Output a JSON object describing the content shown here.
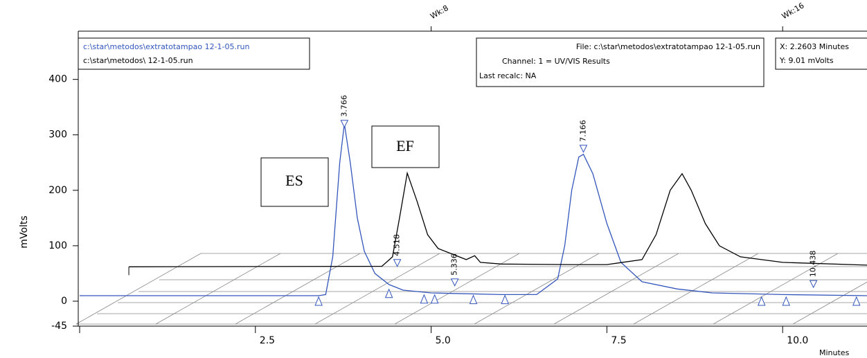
{
  "chart_data": {
    "type": "line",
    "y_label": "mVolts",
    "x_label": "Minutes",
    "xlim": [
      0,
      11.2
    ],
    "ylim": [
      -45,
      487
    ],
    "xticks": [
      {
        "value": 2.5,
        "label": "2.5"
      },
      {
        "value": 5,
        "label": "5.0"
      },
      {
        "value": 7.5,
        "label": "7.5"
      },
      {
        "value": 10,
        "label": "10.0"
      }
    ],
    "yticks": [
      -45,
      0,
      100,
      200,
      300,
      400
    ],
    "top_axis": [
      {
        "value": 5,
        "label": "Wk:8"
      },
      {
        "value": 10,
        "label": "Wk:16"
      }
    ],
    "series": [
      {
        "name": "c:\\star\\metodos\\extratotampao    12-1-05.run",
        "color": "#3355bb",
        "x": [
          0,
          3.4,
          3.5,
          3.6,
          3.7,
          3.766,
          3.85,
          3.95,
          4.05,
          4.2,
          4.4,
          4.5,
          4.6,
          5.0,
          6.0,
          6.5,
          6.8,
          6.9,
          7.0,
          7.1,
          7.166,
          7.3,
          7.5,
          7.7,
          8.0,
          8.5,
          9.0,
          10.0,
          11.2
        ],
        "values": [
          10,
          10,
          12,
          80,
          250,
          320,
          250,
          150,
          90,
          50,
          30,
          25,
          20,
          15,
          12,
          12,
          40,
          100,
          200,
          260,
          265,
          230,
          140,
          70,
          35,
          22,
          15,
          12,
          10
        ]
      },
      {
        "name": "c:\\star\\metodos\\    12-1-05.run",
        "color": "#000000",
        "x": [
          0.7,
          4.3,
          4.45,
          4.55,
          4.66,
          4.8,
          4.95,
          5.1,
          5.3,
          5.5,
          5.62,
          5.7,
          6.0,
          7.0,
          7.5,
          8.0,
          8.2,
          8.4,
          8.57,
          8.7,
          8.9,
          9.1,
          9.4,
          10.0,
          11.2
        ],
        "values": [
          62,
          63,
          80,
          150,
          231,
          180,
          120,
          95,
          85,
          75,
          82,
          70,
          67,
          66,
          66,
          75,
          120,
          200,
          230,
          200,
          140,
          100,
          80,
          70,
          65
        ]
      }
    ],
    "peaks": [
      {
        "time": 3.766,
        "height": 320
      },
      {
        "time": 4.518,
        "height": 69
      },
      {
        "time": 5.336,
        "height": 34
      },
      {
        "time": 7.166,
        "height": 275
      },
      {
        "time": 10.438,
        "height": 31
      }
    ],
    "baseline_marks": [
      {
        "time": 3.4,
        "height": 0
      },
      {
        "time": 4.4,
        "height": 14
      },
      {
        "time": 4.9,
        "height": 4
      },
      {
        "time": 5.05,
        "height": 4
      },
      {
        "time": 5.6,
        "height": 3
      },
      {
        "time": 6.05,
        "height": 3
      },
      {
        "time": 9.7,
        "height": 0
      },
      {
        "time": 10.05,
        "height": 0
      },
      {
        "time": 11.05,
        "height": 0
      }
    ],
    "info_box": [
      "File: c:\\star\\metodos\\extratotampao    12-1-05.run",
      "Channel: 1 = UV/VIS  Results",
      "Last recalc: NA"
    ],
    "cursor_box": [
      "X:  2.2603 Minutes",
      "Y: 9.01 mVolts"
    ],
    "annotations": [
      "ES",
      "EF"
    ]
  }
}
